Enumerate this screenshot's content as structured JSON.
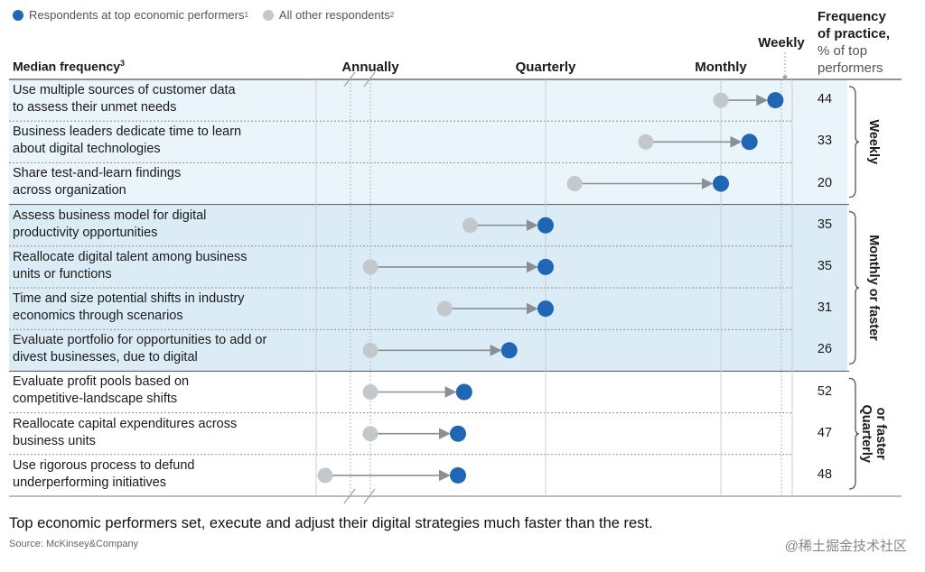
{
  "legend": {
    "top": {
      "label": "Respondents at top economic performers",
      "sup": "1",
      "color": "#2066b4"
    },
    "other": {
      "label": "All other respondents",
      "sup": "2",
      "color": "#c3c8cd"
    }
  },
  "header": {
    "median": "Median frequency",
    "median_sup": "3",
    "freq_line1": "Frequency",
    "freq_line2": "of practice,",
    "freq_line3": "% of top",
    "freq_line4": "performers"
  },
  "chart_data": {
    "type": "dumbbell",
    "x_ticks": [
      {
        "label": "Annually",
        "value": 1
      },
      {
        "label": "Quarterly",
        "value": 4
      },
      {
        "label": "Monthly",
        "value": 12
      },
      {
        "label": "Weekly",
        "value": 52
      }
    ],
    "groups": [
      {
        "label": "Weekly",
        "rows": [
          0,
          1,
          2
        ]
      },
      {
        "label": "Monthly or faster",
        "rows": [
          3,
          4,
          5,
          6
        ]
      },
      {
        "label": "Quarterly or faster",
        "rows": [
          7,
          8,
          9
        ]
      }
    ],
    "rows": [
      {
        "line1": "Use multiple sources of customer data",
        "line2": "to assess their unmet needs",
        "other": 12,
        "top": 45,
        "pct": "44"
      },
      {
        "line1": "Business leaders dedicate time to learn",
        "line2": "about digital technologies",
        "other": 7.5,
        "top": 24,
        "pct": "33"
      },
      {
        "line1": "Share test-and-learn findings",
        "line2": "across organization",
        "other": 4.8,
        "top": 12,
        "pct": "20"
      },
      {
        "line1": "Assess business model for digital",
        "line2": "productivity opportunities",
        "other": 2.2,
        "top": 4,
        "pct": "35"
      },
      {
        "line1": "Reallocate digital talent among business",
        "line2": "units or functions",
        "other": 1,
        "top": 4,
        "pct": "35"
      },
      {
        "line1": "Time and size potential shifts in industry",
        "line2": "economics through scenarios",
        "other": 1.8,
        "top": 4,
        "pct": "31"
      },
      {
        "line1": "Evaluate portfolio for opportunities to add or",
        "line2": "divest businesses, due to digital",
        "other": 1,
        "top": 3,
        "pct": "26"
      },
      {
        "line1": "Evaluate profit pools based on",
        "line2": "competitive-landscape shifts",
        "other": 1,
        "top": 2.1,
        "pct": "52"
      },
      {
        "line1": "Reallocate capital expenditures across",
        "line2": "business units",
        "other": 1,
        "top": 2,
        "pct": "47"
      },
      {
        "line1": "Use rigorous process to defund",
        "line2": "underperforming initiatives",
        "other": 0.7,
        "top": 2,
        "pct": "48"
      }
    ]
  },
  "footer": {
    "caption": "Top economic performers set, execute and adjust their digital strategies much faster than the rest.",
    "source": "Source: McKinsey&Company",
    "watermark": "@稀土掘金技术社区"
  }
}
